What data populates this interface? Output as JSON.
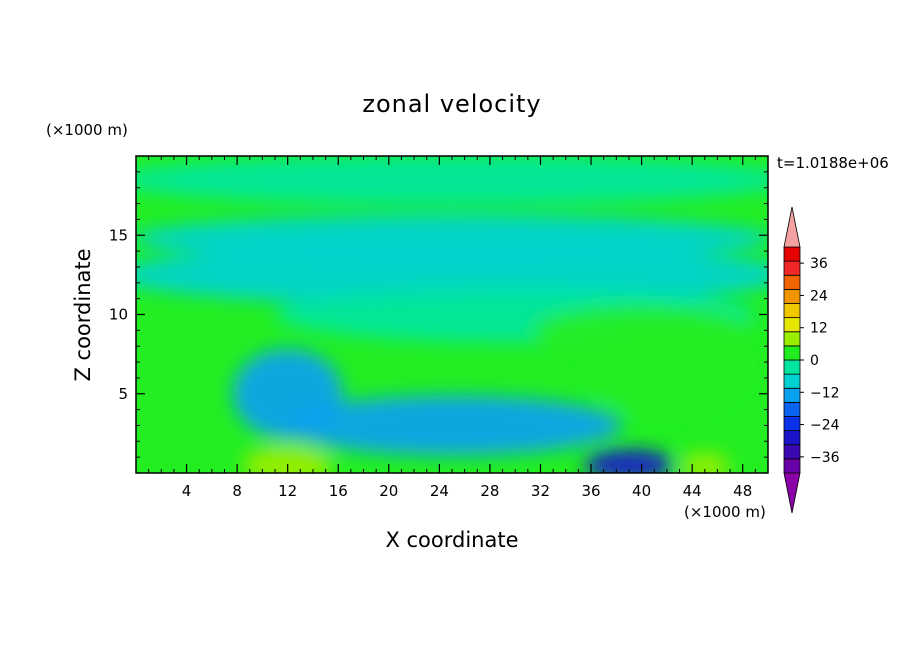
{
  "chart_data": {
    "type": "heatmap",
    "title": "zonal velocity",
    "xlabel": "X coordinate",
    "ylabel": "Z coordinate",
    "x_unit": "(×1000 m)",
    "y_unit": "(×1000 m)",
    "time_label": "t=1.0188e+06",
    "xlim": [
      0,
      50
    ],
    "ylim": [
      0,
      20
    ],
    "x_ticks": [
      4,
      8,
      12,
      16,
      20,
      24,
      28,
      32,
      36,
      40,
      44,
      48
    ],
    "y_ticks": [
      5,
      10,
      15
    ],
    "grid": false,
    "colorbar": {
      "labels": [
        36,
        24,
        12,
        0,
        -12,
        -24,
        -36
      ],
      "levels": [
        -42,
        -36,
        -30,
        -24,
        -18,
        -12,
        -6,
        0,
        6,
        12,
        18,
        24,
        30,
        36,
        42
      ],
      "colors": [
        "#6a00a8",
        "#3a0ab0",
        "#1a14c8",
        "#0a32e6",
        "#0a64f0",
        "#0aa0f0",
        "#00d2d2",
        "#00e6a0",
        "#22ee22",
        "#9aee00",
        "#e6e600",
        "#f0c800",
        "#f09600",
        "#f06400",
        "#f02828",
        "#e60000"
      ],
      "under_color": "#8c00a8",
      "over_color": "#f4a0a0"
    },
    "features": [
      {
        "x": 25,
        "z": 18.5,
        "value": 0
      },
      {
        "x": 25,
        "z": 14.8,
        "value": -6
      },
      {
        "x": 25,
        "z": 12.5,
        "value": -3
      },
      {
        "x": 30,
        "z": 10.0,
        "value": 5
      },
      {
        "x": 40,
        "z": 9.0,
        "value": 8
      },
      {
        "x": 42,
        "z": 6.5,
        "value": 9
      },
      {
        "x": 12,
        "z": 5.0,
        "value": -10
      },
      {
        "x": 25,
        "z": 3.0,
        "value": -8
      },
      {
        "x": 12,
        "z": 0.5,
        "value": 14
      },
      {
        "x": 39,
        "z": 0.5,
        "value": -30
      },
      {
        "x": 45,
        "z": 0.4,
        "value": 13
      }
    ]
  }
}
